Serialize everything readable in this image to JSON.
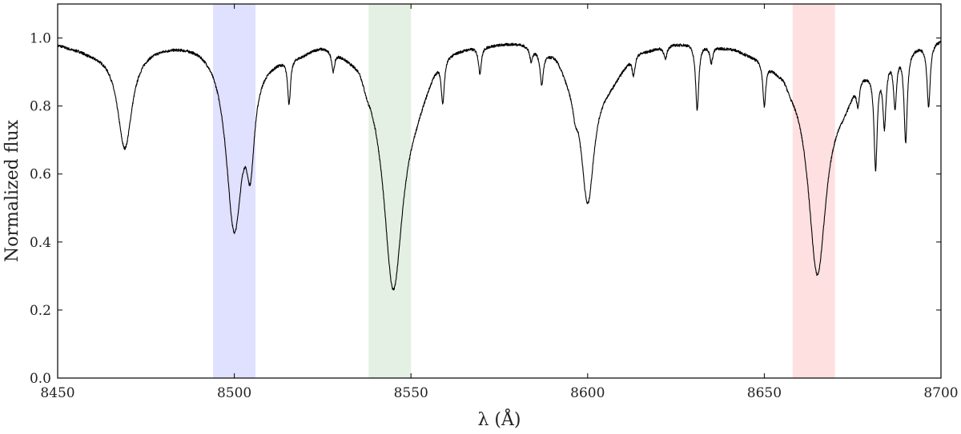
{
  "chart_data": {
    "type": "line",
    "xlabel": "λ (Å)",
    "ylabel": "Normalized flux",
    "xlim": [
      8450,
      8700
    ],
    "ylim": [
      0.0,
      1.1
    ],
    "x_ticks": [
      8450,
      8500,
      8550,
      8600,
      8650,
      8700
    ],
    "x_tick_labels": [
      "8450",
      "8500",
      "8550",
      "8600",
      "8650",
      "8700"
    ],
    "y_ticks": [
      0.0,
      0.2,
      0.4,
      0.6,
      0.8,
      1.0
    ],
    "y_tick_labels": [
      "0.0",
      "0.2",
      "0.4",
      "0.6",
      "0.8",
      "1.0"
    ],
    "grid": false,
    "line_color": "#000000",
    "highlight_bands": [
      {
        "x0": 8494,
        "x1": 8506,
        "color": "#0000ff",
        "opacity": 0.12
      },
      {
        "x0": 8538,
        "x1": 8550,
        "color": "#2e8b2e",
        "opacity": 0.13
      },
      {
        "x0": 8658,
        "x1": 8670,
        "color": "#ff0000",
        "opacity": 0.12
      }
    ],
    "continuum": [
      [
        8450,
        0.985
      ],
      [
        8455,
        0.975
      ],
      [
        8460,
        0.965
      ],
      [
        8490,
        0.995
      ],
      [
        8495,
        0.99
      ],
      [
        8510,
        0.96
      ],
      [
        8518,
        0.97
      ],
      [
        8525,
        0.995
      ],
      [
        8535,
        0.97
      ],
      [
        8538,
        0.92
      ],
      [
        8550,
        0.84
      ],
      [
        8560,
        0.98
      ],
      [
        8570,
        0.99
      ],
      [
        8580,
        0.995
      ],
      [
        8590,
        0.97
      ],
      [
        8596,
        0.9
      ],
      [
        8605,
        0.88
      ],
      [
        8615,
        0.97
      ],
      [
        8625,
        0.99
      ],
      [
        8630,
        0.995
      ],
      [
        8640,
        0.98
      ],
      [
        8648,
        0.96
      ],
      [
        8655,
        0.93
      ],
      [
        8658,
        0.9
      ],
      [
        8672,
        0.84
      ],
      [
        8678,
        0.92
      ],
      [
        8690,
        0.98
      ],
      [
        8700,
        1.0
      ]
    ],
    "absorption_lines": [
      {
        "center": 8469,
        "depth": 0.3,
        "width": 2.5
      },
      {
        "center": 8500,
        "depth": 0.55,
        "width": 2.8
      },
      {
        "center": 8504.5,
        "depth": 0.3,
        "width": 1.4
      },
      {
        "center": 8515.5,
        "depth": 0.14,
        "width": 0.5
      },
      {
        "center": 8528,
        "depth": 0.06,
        "width": 0.5
      },
      {
        "center": 8545,
        "depth": 0.7,
        "width": 3.2
      },
      {
        "center": 8559,
        "depth": 0.14,
        "width": 0.55
      },
      {
        "center": 8569.5,
        "depth": 0.08,
        "width": 0.5
      },
      {
        "center": 8584,
        "depth": 0.04,
        "width": 0.5
      },
      {
        "center": 8587,
        "depth": 0.1,
        "width": 0.55
      },
      {
        "center": 8596.5,
        "depth": 0.06,
        "width": 0.8
      },
      {
        "center": 8600,
        "depth": 0.42,
        "width": 2.2
      },
      {
        "center": 8613,
        "depth": 0.06,
        "width": 0.5
      },
      {
        "center": 8622,
        "depth": 0.04,
        "width": 0.5
      },
      {
        "center": 8631,
        "depth": 0.2,
        "width": 0.55
      },
      {
        "center": 8635,
        "depth": 0.05,
        "width": 0.5
      },
      {
        "center": 8650,
        "depth": 0.14,
        "width": 0.5
      },
      {
        "center": 8665,
        "depth": 0.65,
        "width": 3.0
      },
      {
        "center": 8676.5,
        "depth": 0.08,
        "width": 0.5
      },
      {
        "center": 8681.5,
        "depth": 0.32,
        "width": 0.55
      },
      {
        "center": 8684,
        "depth": 0.2,
        "width": 0.55
      },
      {
        "center": 8687,
        "depth": 0.16,
        "width": 0.55
      },
      {
        "center": 8690,
        "depth": 0.28,
        "width": 0.55
      },
      {
        "center": 8696.5,
        "depth": 0.19,
        "width": 0.55
      }
    ]
  }
}
